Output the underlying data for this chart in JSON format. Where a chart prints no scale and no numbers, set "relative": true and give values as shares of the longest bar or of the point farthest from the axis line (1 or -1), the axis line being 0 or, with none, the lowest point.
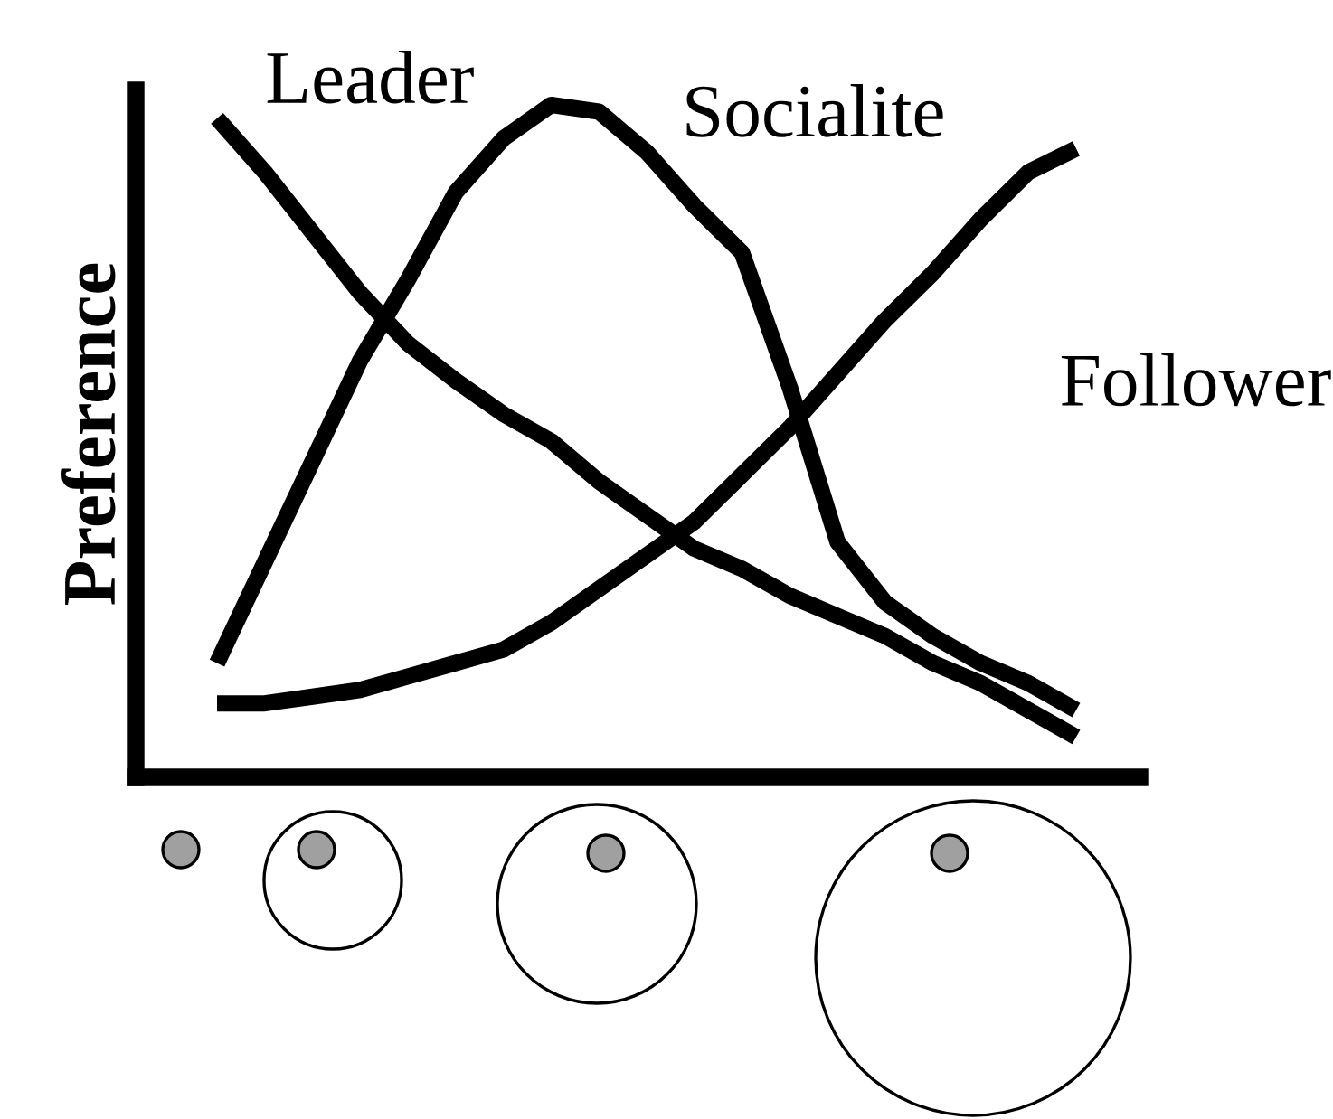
{
  "chart_data": {
    "type": "line",
    "relative": true,
    "ylabel": "Preference",
    "legend": false,
    "grid": false,
    "marker": "none",
    "line_style": "solid",
    "categories": [
      null,
      null,
      null,
      null,
      null,
      null,
      null,
      null,
      null,
      null,
      null,
      null,
      null,
      null,
      null,
      null,
      null,
      null,
      null
    ],
    "series": [
      {
        "name": "Leader",
        "color": "#000000",
        "values": [
          0.98,
          0.9,
          0.81,
          0.72,
          0.645,
          0.59,
          0.54,
          0.5,
          0.44,
          0.39,
          0.34,
          0.31,
          0.27,
          0.24,
          0.21,
          0.17,
          0.14,
          0.1,
          0.06
        ]
      },
      {
        "name": "Socialite",
        "color": "#000000",
        "values": [
          0.17,
          0.32,
          0.47,
          0.62,
          0.74,
          0.87,
          0.95,
          1.0,
          0.99,
          0.93,
          0.85,
          0.78,
          0.58,
          0.35,
          0.26,
          0.21,
          0.17,
          0.14,
          0.1
        ]
      },
      {
        "name": "Follower",
        "color": "#000000",
        "values": [
          0.11,
          0.11,
          0.12,
          0.13,
          0.15,
          0.17,
          0.19,
          0.23,
          0.28,
          0.33,
          0.38,
          0.45,
          0.52,
          0.6,
          0.68,
          0.75,
          0.83,
          0.9,
          0.935
        ]
      }
    ]
  }
}
